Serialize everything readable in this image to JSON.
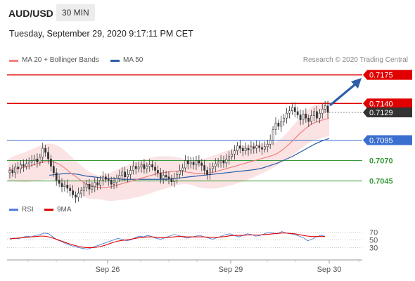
{
  "header": {
    "symbol": "AUD/USD",
    "timeframe": "30 MIN",
    "datetime": "Tuesday, September 29, 2020 9:17:11 PM CET"
  },
  "legend": {
    "ma20": {
      "label": "MA 20 + Bollinger Bands",
      "color": "#f08080"
    },
    "ma50": {
      "label": "MA 50",
      "color": "#2a5da8"
    },
    "copyright": "Research © 2020 Trading Central"
  },
  "rsi_legend": {
    "rsi": {
      "label": "RSI",
      "color": "#4f7fd8"
    },
    "ma9": {
      "label": "9MA",
      "color": "#e00000"
    }
  },
  "colors": {
    "resistance": "#e00000",
    "current_price_bg": "#333333",
    "pivot": "#3a6fd0",
    "support": "#3a9a3a",
    "arrow": "#2e5ea8",
    "candle": "#333333",
    "bollinger_fill": "#fadada"
  },
  "chart_data": [
    {
      "type": "candlestick",
      "title": "",
      "x_ticks": [
        "Sep 26",
        "Sep 29",
        "Sep 30"
      ],
      "ylim": [
        0.703,
        0.7185
      ],
      "levels": [
        {
          "label": "0.7175",
          "value": 0.7175,
          "role": "resistance"
        },
        {
          "label": "0.7140",
          "value": 0.714,
          "role": "resistance"
        },
        {
          "label": "0.7129",
          "value": 0.7129,
          "role": "current"
        },
        {
          "label": "0.7095",
          "value": 0.7095,
          "role": "pivot"
        },
        {
          "label": "0.7070",
          "value": 0.707,
          "role": "support"
        },
        {
          "label": "0.7045",
          "value": 0.7045,
          "role": "support"
        }
      ],
      "close": [
        0.7058,
        0.7055,
        0.7062,
        0.706,
        0.7065,
        0.7063,
        0.7066,
        0.7068,
        0.707,
        0.7072,
        0.7068,
        0.7074,
        0.7085,
        0.708,
        0.7072,
        0.7063,
        0.7055,
        0.7046,
        0.7042,
        0.7038,
        0.704,
        0.7036,
        0.7033,
        0.7028,
        0.7025,
        0.703,
        0.7033,
        0.7037,
        0.7041,
        0.7035,
        0.7038,
        0.7043,
        0.704,
        0.7046,
        0.705,
        0.7047,
        0.7046,
        0.7041,
        0.7043,
        0.7048,
        0.7052,
        0.7056,
        0.705,
        0.7053,
        0.7058,
        0.7063,
        0.706,
        0.7062,
        0.7065,
        0.706,
        0.7063,
        0.7065,
        0.7062,
        0.7058,
        0.7055,
        0.7048,
        0.7052,
        0.705,
        0.7048,
        0.7044,
        0.7048,
        0.7053,
        0.7058,
        0.7061,
        0.707,
        0.7066,
        0.7068,
        0.7065,
        0.707,
        0.7067,
        0.7064,
        0.7058,
        0.7053,
        0.706,
        0.7063,
        0.7066,
        0.7068,
        0.707,
        0.7067,
        0.7072,
        0.7075,
        0.7078,
        0.7082,
        0.7088,
        0.7085,
        0.7082,
        0.7085,
        0.7083,
        0.7087,
        0.7085,
        0.7088,
        0.7086,
        0.7084,
        0.7087,
        0.709,
        0.7095,
        0.7108,
        0.7116,
        0.7112,
        0.7118,
        0.7122,
        0.7128,
        0.7131,
        0.7135,
        0.713,
        0.7126,
        0.712,
        0.7127,
        0.7122,
        0.7118,
        0.7125,
        0.713,
        0.7122,
        0.7128,
        0.7133,
        0.7137,
        0.7129
      ],
      "ma20": [
        0.7058,
        0.706,
        0.7061,
        0.7062,
        0.7064,
        0.7066,
        0.7068,
        0.7069,
        0.7068,
        0.7065,
        0.706,
        0.7054,
        0.7049,
        0.7044,
        0.704,
        0.7038,
        0.7037,
        0.7037,
        0.7038,
        0.704,
        0.7042,
        0.7044,
        0.7046,
        0.7048,
        0.705,
        0.7052,
        0.7054,
        0.7055,
        0.7056,
        0.7057,
        0.7057,
        0.7056,
        0.7055,
        0.7054,
        0.7054,
        0.7055,
        0.7056,
        0.7058,
        0.706,
        0.7062,
        0.7064,
        0.7066,
        0.7068,
        0.707,
        0.7072,
        0.7074,
        0.7076,
        0.7079,
        0.7084,
        0.709,
        0.7097,
        0.7104,
        0.711,
        0.7115,
        0.7118,
        0.712,
        0.7122
      ],
      "ma50": [
        0.7052,
        0.7053,
        0.7054,
        0.7054,
        0.7053,
        0.7051,
        0.705,
        0.7049,
        0.7048,
        0.7048,
        0.7047,
        0.7047,
        0.7047,
        0.7047,
        0.7047,
        0.7047,
        0.7047,
        0.7048,
        0.7049,
        0.705,
        0.7051,
        0.7052,
        0.7053,
        0.7054,
        0.7055,
        0.7056,
        0.7057,
        0.7058,
        0.7059,
        0.7061,
        0.7064,
        0.7067,
        0.7071,
        0.7075,
        0.708,
        0.7085,
        0.709,
        0.7094,
        0.7097
      ]
    },
    {
      "type": "line",
      "title": "",
      "yticks": [
        70,
        50,
        30
      ],
      "ylim": [
        20,
        80
      ],
      "series": [
        {
          "name": "RSI",
          "values": [
            52,
            55,
            53,
            57,
            60,
            58,
            62,
            64,
            68,
            66,
            58,
            50,
            46,
            40,
            36,
            33,
            30,
            28,
            26,
            30,
            34,
            38,
            42,
            46,
            50,
            54,
            52,
            48,
            50,
            56,
            60,
            58,
            62,
            58,
            54,
            52,
            56,
            60,
            64,
            62,
            58,
            55,
            57,
            60,
            62,
            58,
            55,
            52,
            56,
            60,
            64,
            66,
            62,
            58,
            62,
            66,
            64,
            60,
            62,
            66,
            70,
            68,
            66,
            72,
            68,
            66,
            64,
            60,
            56,
            48,
            52,
            58,
            62,
            60
          ]
        },
        {
          "name": "9MA",
          "values": [
            53,
            54,
            55,
            56,
            57,
            58,
            59,
            60,
            60,
            58,
            55,
            51,
            47,
            43,
            39,
            36,
            33,
            31,
            30,
            30,
            31,
            33,
            36,
            40,
            44,
            47,
            49,
            50,
            52,
            54,
            56,
            57,
            58,
            58,
            57,
            56,
            56,
            57,
            58,
            59,
            59,
            58,
            58,
            58,
            58,
            58,
            57,
            57,
            57,
            58,
            59,
            61,
            62,
            62,
            62,
            63,
            63,
            63,
            63,
            64,
            65,
            66,
            67,
            68,
            68,
            67,
            66,
            64,
            62,
            60,
            59,
            59,
            59,
            59
          ]
        }
      ]
    }
  ]
}
